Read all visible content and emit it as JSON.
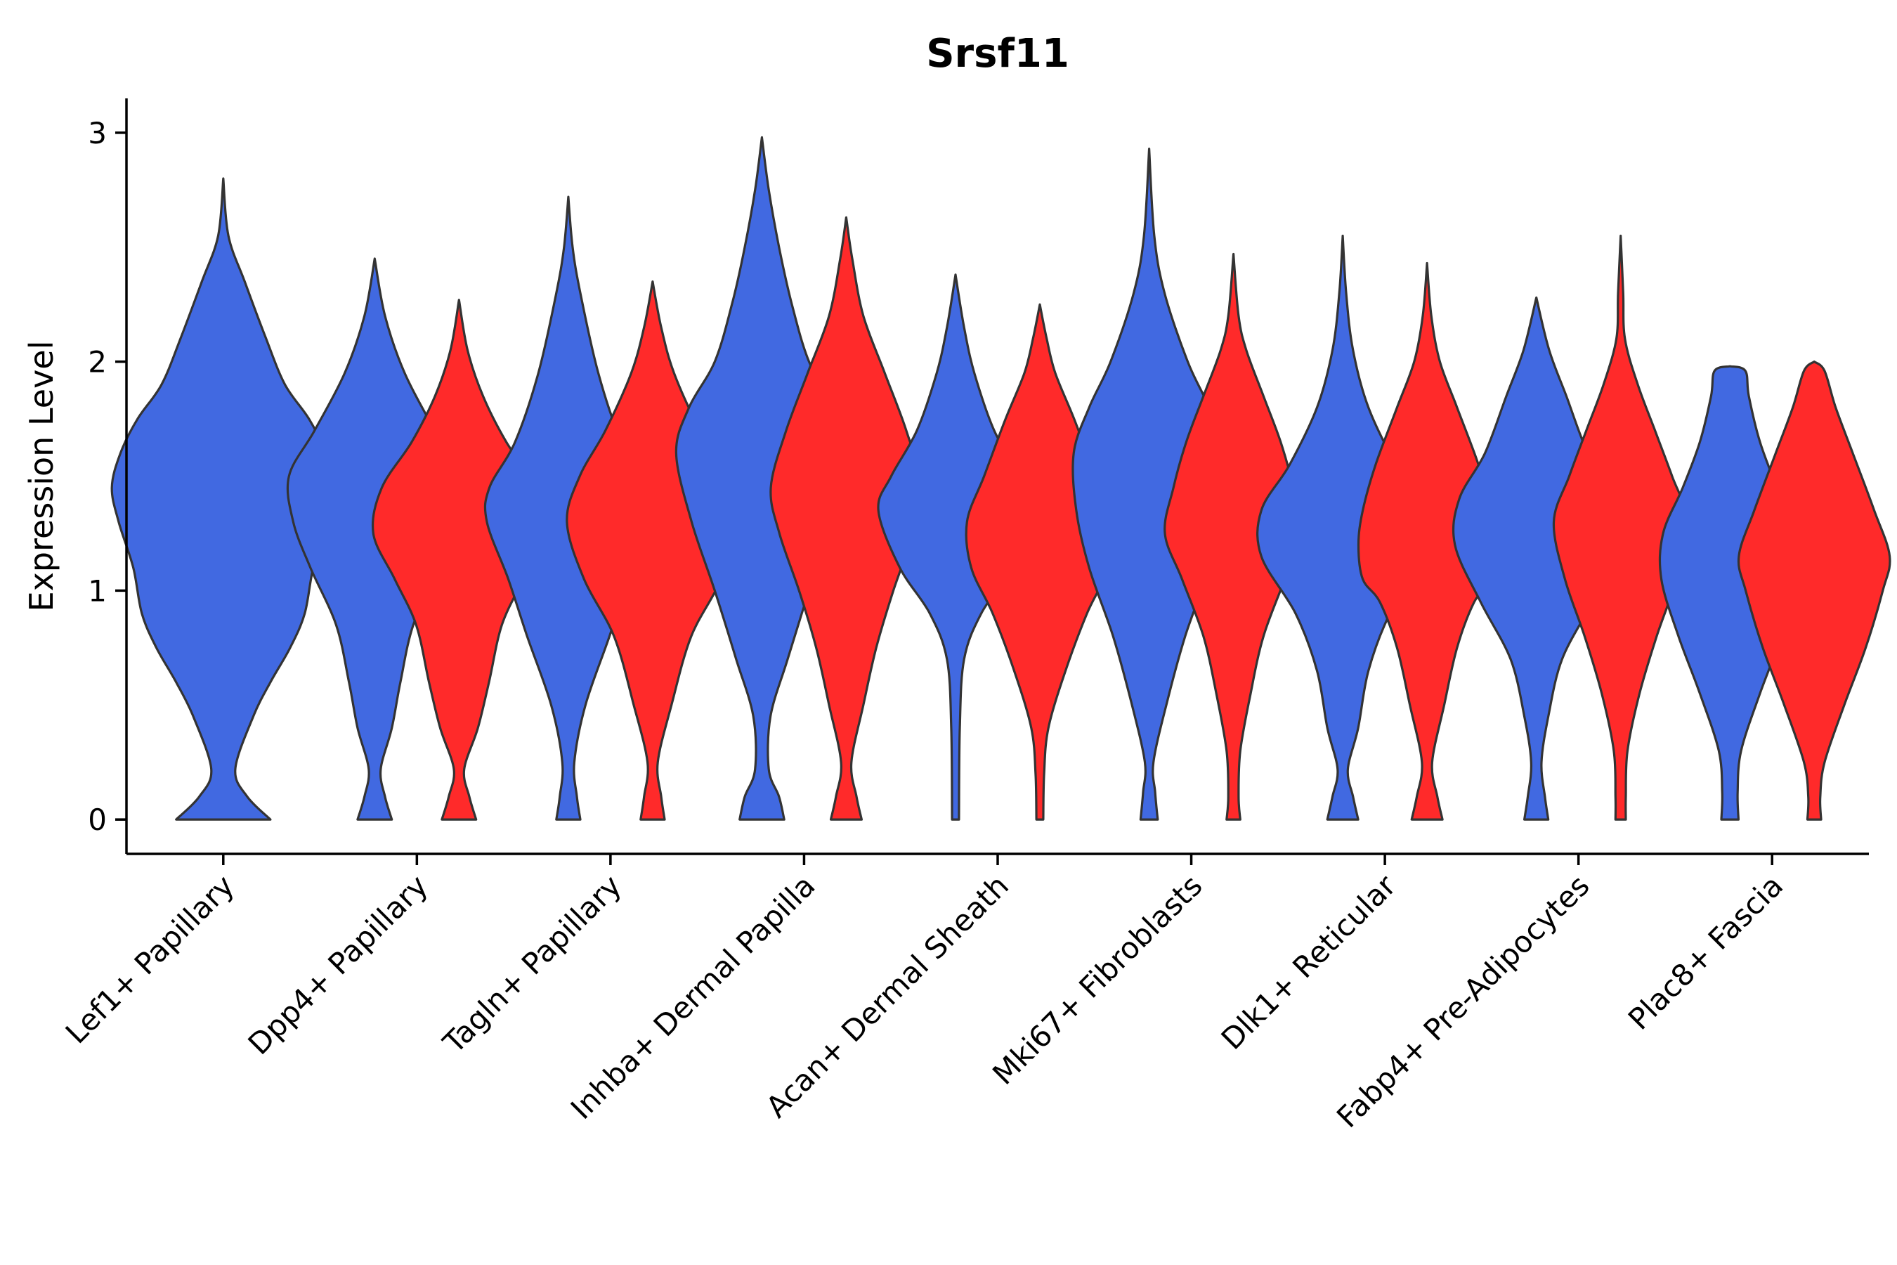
{
  "chart_data": {
    "type": "violin",
    "title": "Srsf11",
    "xlabel": "",
    "ylabel": "Expression Level",
    "ylim": [
      -0.15,
      3.15
    ],
    "yticks": [
      0,
      1,
      2,
      3
    ],
    "categories": [
      "Lef1+ Papillary",
      "Dpp4+ Papillary",
      "Tagln+ Papillary",
      "Inhba+ Dermal Papilla",
      "Acan+ Dermal Sheath",
      "Mki67+ Fibroblasts",
      "Dlk1+ Reticular",
      "Fabp4+ Pre-Adipocytes",
      "Plac8+ Fascia"
    ],
    "series": [
      {
        "name": "group-blue",
        "color": "#4169E1",
        "violins": [
          {
            "category": "Lef1+ Papillary",
            "max": 2.8,
            "profile": [
              [
                0,
                0.55
              ],
              [
                0.1,
                0.28
              ],
              [
                0.22,
                0.14
              ],
              [
                0.45,
                0.35
              ],
              [
                0.6,
                0.55
              ],
              [
                0.75,
                0.78
              ],
              [
                0.9,
                0.95
              ],
              [
                1.1,
                1.05
              ],
              [
                1.3,
                1.22
              ],
              [
                1.45,
                1.3
              ],
              [
                1.6,
                1.2
              ],
              [
                1.75,
                1.0
              ],
              [
                1.9,
                0.72
              ],
              [
                2.1,
                0.5
              ],
              [
                2.35,
                0.25
              ],
              [
                2.55,
                0.06
              ],
              [
                2.8,
                0.0
              ]
            ]
          },
          {
            "category": "Dpp4+ Papillary",
            "max": 2.45,
            "profile": [
              [
                0,
                0.2
              ],
              [
                0.1,
                0.12
              ],
              [
                0.22,
                0.07
              ],
              [
                0.4,
                0.2
              ],
              [
                0.6,
                0.3
              ],
              [
                0.85,
                0.45
              ],
              [
                1.1,
                0.75
              ],
              [
                1.3,
                0.95
              ],
              [
                1.5,
                1.0
              ],
              [
                1.7,
                0.7
              ],
              [
                1.95,
                0.35
              ],
              [
                2.2,
                0.12
              ],
              [
                2.45,
                0.0
              ]
            ]
          },
          {
            "category": "Tagln+ Papillary",
            "max": 2.72,
            "profile": [
              [
                0,
                0.14
              ],
              [
                0.1,
                0.1
              ],
              [
                0.25,
                0.07
              ],
              [
                0.5,
                0.2
              ],
              [
                0.8,
                0.48
              ],
              [
                1.05,
                0.7
              ],
              [
                1.3,
                0.95
              ],
              [
                1.45,
                0.92
              ],
              [
                1.65,
                0.62
              ],
              [
                1.95,
                0.35
              ],
              [
                2.3,
                0.14
              ],
              [
                2.5,
                0.05
              ],
              [
                2.72,
                0.0
              ]
            ]
          },
          {
            "category": "Inhba+ Dermal Papilla",
            "max": 2.98,
            "profile": [
              [
                0,
                0.26
              ],
              [
                0.1,
                0.2
              ],
              [
                0.22,
                0.08
              ],
              [
                0.45,
                0.1
              ],
              [
                0.7,
                0.3
              ],
              [
                1.0,
                0.55
              ],
              [
                1.3,
                0.82
              ],
              [
                1.6,
                1.0
              ],
              [
                1.8,
                0.85
              ],
              [
                2.0,
                0.55
              ],
              [
                2.25,
                0.35
              ],
              [
                2.5,
                0.2
              ],
              [
                2.75,
                0.08
              ],
              [
                2.98,
                0.0
              ]
            ]
          },
          {
            "category": "Acan+ Dermal Sheath",
            "max": 2.38,
            "profile": [
              [
                0,
                0.04
              ],
              [
                0.4,
                0.05
              ],
              [
                0.7,
                0.1
              ],
              [
                0.9,
                0.3
              ],
              [
                1.1,
                0.65
              ],
              [
                1.35,
                0.9
              ],
              [
                1.5,
                0.75
              ],
              [
                1.7,
                0.45
              ],
              [
                1.95,
                0.22
              ],
              [
                2.15,
                0.1
              ],
              [
                2.38,
                0.0
              ]
            ]
          },
          {
            "category": "Mki67+ Fibroblasts",
            "max": 2.93,
            "profile": [
              [
                0,
                0.1
              ],
              [
                0.12,
                0.07
              ],
              [
                0.25,
                0.05
              ],
              [
                0.5,
                0.2
              ],
              [
                0.8,
                0.42
              ],
              [
                1.1,
                0.7
              ],
              [
                1.35,
                0.85
              ],
              [
                1.6,
                0.88
              ],
              [
                1.8,
                0.7
              ],
              [
                2.0,
                0.45
              ],
              [
                2.3,
                0.18
              ],
              [
                2.55,
                0.06
              ],
              [
                2.93,
                0.0
              ]
            ]
          },
          {
            "category": "Dlk1+ Reticular",
            "max": 2.55,
            "profile": [
              [
                0,
                0.18
              ],
              [
                0.1,
                0.12
              ],
              [
                0.22,
                0.06
              ],
              [
                0.4,
                0.18
              ],
              [
                0.65,
                0.3
              ],
              [
                0.9,
                0.55
              ],
              [
                1.15,
                0.95
              ],
              [
                1.35,
                0.95
              ],
              [
                1.55,
                0.62
              ],
              [
                1.8,
                0.3
              ],
              [
                2.05,
                0.12
              ],
              [
                2.3,
                0.04
              ],
              [
                2.55,
                0.0
              ]
            ]
          },
          {
            "category": "Fabp4+ Pre-Adipocytes",
            "max": 2.28,
            "profile": [
              [
                0,
                0.14
              ],
              [
                0.1,
                0.1
              ],
              [
                0.25,
                0.06
              ],
              [
                0.45,
                0.14
              ],
              [
                0.7,
                0.3
              ],
              [
                0.95,
                0.65
              ],
              [
                1.2,
                0.95
              ],
              [
                1.4,
                0.9
              ],
              [
                1.6,
                0.6
              ],
              [
                1.85,
                0.35
              ],
              [
                2.05,
                0.15
              ],
              [
                2.28,
                0.0
              ]
            ]
          },
          {
            "category": "Plac8+ Fascia",
            "max": 1.98,
            "profile": [
              [
                0,
                0.1
              ],
              [
                0.12,
                0.09
              ],
              [
                0.3,
                0.13
              ],
              [
                0.55,
                0.35
              ],
              [
                0.8,
                0.6
              ],
              [
                1.05,
                0.8
              ],
              [
                1.25,
                0.78
              ],
              [
                1.45,
                0.55
              ],
              [
                1.65,
                0.35
              ],
              [
                1.85,
                0.22
              ],
              [
                1.96,
                0.18
              ],
              [
                1.98,
                0.0
              ]
            ]
          }
        ]
      },
      {
        "name": "group-red",
        "color": "#FF2A2A",
        "violins": [
          {
            "category": "Dpp4+ Papillary",
            "max": 2.27,
            "profile": [
              [
                0,
                0.2
              ],
              [
                0.1,
                0.12
              ],
              [
                0.22,
                0.06
              ],
              [
                0.4,
                0.22
              ],
              [
                0.6,
                0.35
              ],
              [
                0.85,
                0.5
              ],
              [
                1.05,
                0.75
              ],
              [
                1.25,
                1.0
              ],
              [
                1.45,
                0.9
              ],
              [
                1.65,
                0.55
              ],
              [
                1.85,
                0.28
              ],
              [
                2.05,
                0.1
              ],
              [
                2.27,
                0.0
              ]
            ]
          },
          {
            "category": "Tagln+ Papillary",
            "max": 2.35,
            "profile": [
              [
                0,
                0.14
              ],
              [
                0.1,
                0.1
              ],
              [
                0.25,
                0.06
              ],
              [
                0.5,
                0.22
              ],
              [
                0.8,
                0.45
              ],
              [
                1.05,
                0.8
              ],
              [
                1.3,
                1.0
              ],
              [
                1.5,
                0.85
              ],
              [
                1.7,
                0.55
              ],
              [
                1.95,
                0.25
              ],
              [
                2.15,
                0.1
              ],
              [
                2.35,
                0.0
              ]
            ]
          },
          {
            "category": "Inhba+ Dermal Papilla",
            "max": 2.63,
            "profile": [
              [
                0,
                0.18
              ],
              [
                0.1,
                0.12
              ],
              [
                0.25,
                0.06
              ],
              [
                0.5,
                0.2
              ],
              [
                0.75,
                0.35
              ],
              [
                1.0,
                0.55
              ],
              [
                1.25,
                0.78
              ],
              [
                1.45,
                0.88
              ],
              [
                1.7,
                0.7
              ],
              [
                1.95,
                0.45
              ],
              [
                2.2,
                0.2
              ],
              [
                2.45,
                0.07
              ],
              [
                2.63,
                0.0
              ]
            ]
          },
          {
            "category": "Acan+ Dermal Sheath",
            "max": 2.25,
            "profile": [
              [
                0,
                0.04
              ],
              [
                0.2,
                0.05
              ],
              [
                0.4,
                0.1
              ],
              [
                0.65,
                0.3
              ],
              [
                0.9,
                0.55
              ],
              [
                1.1,
                0.8
              ],
              [
                1.3,
                0.85
              ],
              [
                1.5,
                0.65
              ],
              [
                1.75,
                0.4
              ],
              [
                1.95,
                0.18
              ],
              [
                2.1,
                0.08
              ],
              [
                2.25,
                0.0
              ]
            ]
          },
          {
            "category": "Mki67+ Fibroblasts",
            "max": 2.47,
            "profile": [
              [
                0,
                0.08
              ],
              [
                0.1,
                0.06
              ],
              [
                0.3,
                0.08
              ],
              [
                0.55,
                0.2
              ],
              [
                0.8,
                0.35
              ],
              [
                1.05,
                0.6
              ],
              [
                1.25,
                0.8
              ],
              [
                1.45,
                0.7
              ],
              [
                1.65,
                0.55
              ],
              [
                1.85,
                0.35
              ],
              [
                2.05,
                0.15
              ],
              [
                2.2,
                0.06
              ],
              [
                2.47,
                0.0
              ]
            ]
          },
          {
            "category": "Dlk1+ Reticular",
            "max": 2.43,
            "profile": [
              [
                0,
                0.18
              ],
              [
                0.1,
                0.12
              ],
              [
                0.25,
                0.06
              ],
              [
                0.5,
                0.2
              ],
              [
                0.75,
                0.35
              ],
              [
                0.95,
                0.55
              ],
              [
                1.05,
                0.75
              ],
              [
                1.2,
                0.8
              ],
              [
                1.35,
                0.75
              ],
              [
                1.55,
                0.6
              ],
              [
                1.8,
                0.35
              ],
              [
                2.0,
                0.15
              ],
              [
                2.2,
                0.05
              ],
              [
                2.43,
                0.0
              ]
            ]
          },
          {
            "category": "Fabp4+ Pre-Adipocytes",
            "max": 2.55,
            "profile": [
              [
                0,
                0.06
              ],
              [
                0.1,
                0.06
              ],
              [
                0.3,
                0.08
              ],
              [
                0.55,
                0.22
              ],
              [
                0.8,
                0.42
              ],
              [
                1.05,
                0.65
              ],
              [
                1.3,
                0.78
              ],
              [
                1.5,
                0.6
              ],
              [
                1.7,
                0.4
              ],
              [
                1.9,
                0.2
              ],
              [
                2.1,
                0.05
              ],
              [
                2.3,
                0.03
              ],
              [
                2.55,
                0.0
              ]
            ]
          },
          {
            "category": "Plac8+ Fascia",
            "max": 2.0,
            "profile": [
              [
                0,
                0.08
              ],
              [
                0.1,
                0.07
              ],
              [
                0.25,
                0.12
              ],
              [
                0.5,
                0.35
              ],
              [
                0.75,
                0.6
              ],
              [
                1.0,
                0.8
              ],
              [
                1.15,
                0.88
              ],
              [
                1.35,
                0.7
              ],
              [
                1.6,
                0.45
              ],
              [
                1.8,
                0.25
              ],
              [
                1.96,
                0.12
              ],
              [
                2.0,
                0.0
              ]
            ]
          }
        ]
      }
    ]
  }
}
